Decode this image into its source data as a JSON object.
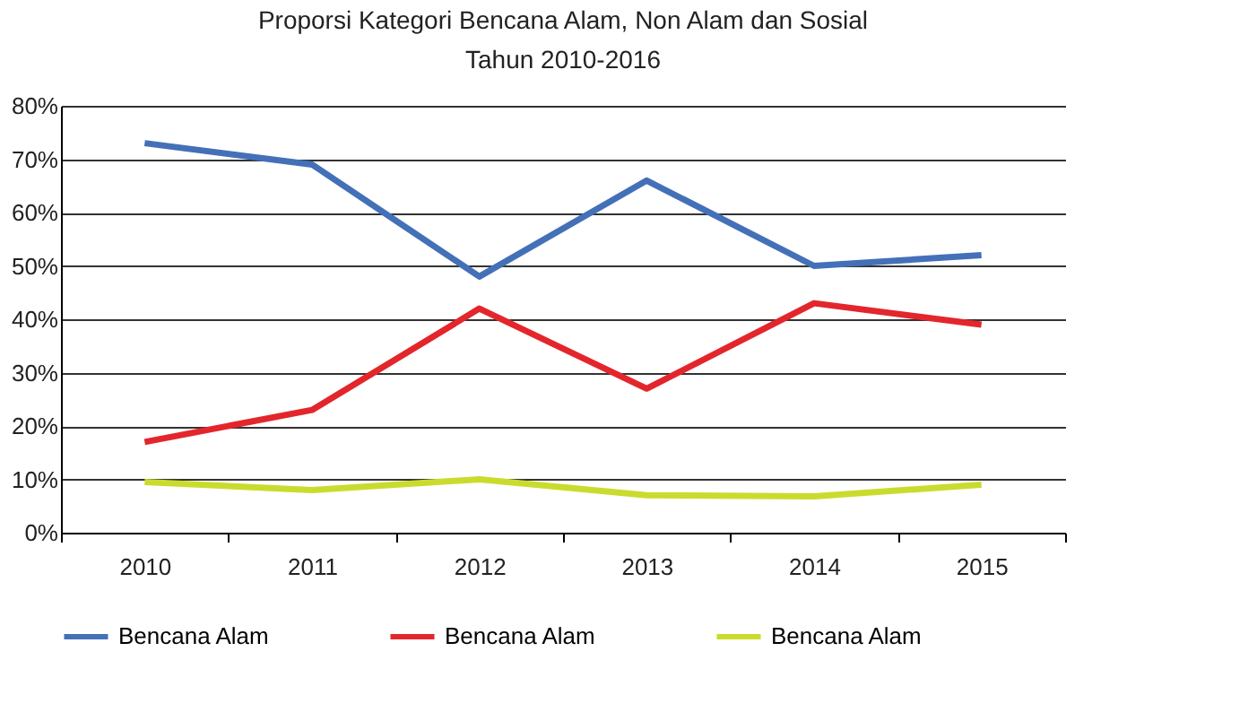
{
  "chart_data": {
    "type": "line",
    "title": "Proporsi Kategori Bencana Alam, Non Alam dan Sosial",
    "subtitle": "Tahun 2010-2016",
    "categories": [
      "2010",
      "2011",
      "2012",
      "2013",
      "2014",
      "2015"
    ],
    "series": [
      {
        "name": "Bencana Alam",
        "color": "#4470b8",
        "values": [
          73,
          69,
          48,
          66,
          50,
          52
        ]
      },
      {
        "name": "Bencana Alam",
        "color": "#e3262c",
        "values": [
          17,
          23,
          42,
          27,
          43,
          39
        ]
      },
      {
        "name": "Bencana Alam",
        "color": "#c9dc2e",
        "values": [
          9.5,
          8,
          10,
          7,
          6.8,
          9
        ]
      }
    ],
    "ylim": [
      0,
      80
    ],
    "yticks": [
      {
        "value": 0,
        "label": "0%"
      },
      {
        "value": 10,
        "label": "10%"
      },
      {
        "value": 20,
        "label": "20%"
      },
      {
        "value": 30,
        "label": "30%"
      },
      {
        "value": 40,
        "label": "40%"
      },
      {
        "value": 50,
        "label": "50%"
      },
      {
        "value": 60,
        "label": "60%"
      },
      {
        "value": 70,
        "label": "70%"
      },
      {
        "value": 80,
        "label": "80%"
      }
    ],
    "grid": "y",
    "legend": "bottom",
    "marker": "none",
    "line_style": "solid"
  }
}
